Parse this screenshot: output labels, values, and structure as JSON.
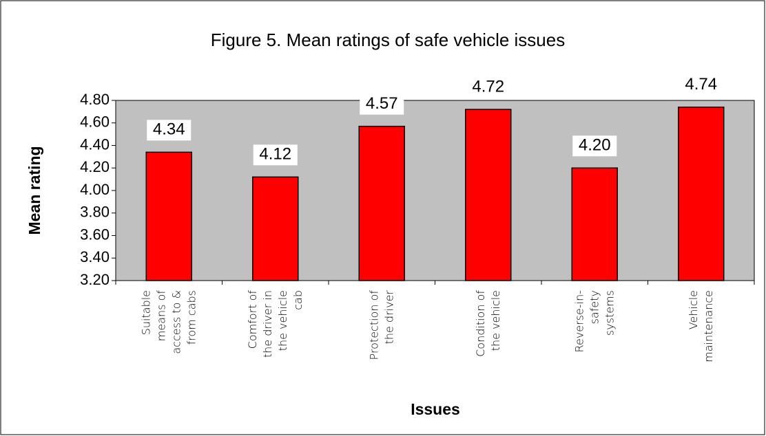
{
  "chart_data": {
    "type": "bar",
    "title": "Figure 5. Mean ratings of safe vehicle issues",
    "x_label": "Issues",
    "y_label": "Mean rating",
    "categories": [
      "Suitable means of access to & from cabs",
      "Comfort of the driver in the vehicle cab",
      "Protection of the driver",
      "Condition of the vehicle",
      "Reverse-in-safety systems",
      "Vehicle maintenance"
    ],
    "values": [
      4.34,
      4.12,
      4.57,
      4.72,
      4.2,
      4.74
    ],
    "value_labels": [
      "4.34",
      "4.12",
      "4.57",
      "4.72",
      "4.20",
      "4.74"
    ],
    "color": "#ff0000",
    "plot_background": "#c0c0c0",
    "ylim": [
      3.2,
      4.8
    ],
    "yticks": [
      {
        "value": 3.2,
        "label": "3.20"
      },
      {
        "value": 3.4,
        "label": "3.40"
      },
      {
        "value": 3.6,
        "label": "3.60"
      },
      {
        "value": 3.8,
        "label": "3.80"
      },
      {
        "value": 4.0,
        "label": "4.00"
      },
      {
        "value": 4.2,
        "label": "4.20"
      },
      {
        "value": 4.4,
        "label": "4.40"
      },
      {
        "value": 4.6,
        "label": "4.60"
      },
      {
        "value": 4.8,
        "label": "4.80"
      }
    ],
    "grid": false
  }
}
